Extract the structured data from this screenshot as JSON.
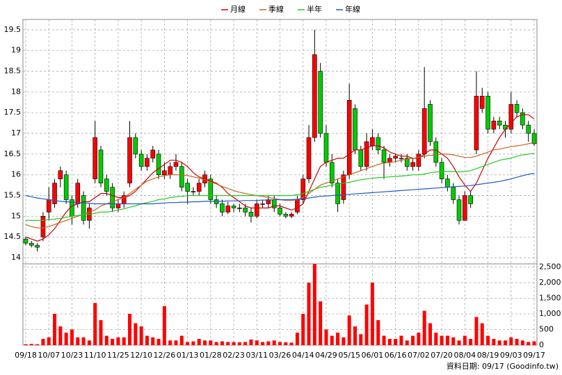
{
  "chart_data": {
    "type": "candlestick",
    "categories": [
      "09/18",
      null,
      null,
      null,
      "10/07",
      null,
      null,
      null,
      "10/23",
      null,
      null,
      null,
      "11/10",
      null,
      null,
      null,
      "11/25",
      null,
      null,
      null,
      "12/10",
      null,
      null,
      null,
      "12/26",
      null,
      null,
      null,
      "01/13",
      null,
      null,
      null,
      "01/28",
      null,
      null,
      null,
      "02/23",
      null,
      null,
      null,
      "03/11",
      null,
      null,
      null,
      "03/26",
      null,
      null,
      null,
      "04/14",
      null,
      null,
      null,
      "04/29",
      null,
      null,
      null,
      "05/15",
      null,
      null,
      null,
      "06/01",
      null,
      null,
      null,
      "06/16",
      null,
      null,
      null,
      "07/02",
      null,
      null,
      null,
      "07/20",
      null,
      null,
      null,
      "08/04",
      null,
      null,
      null,
      "08/19",
      null,
      null,
      null,
      "09/03",
      null,
      null,
      null,
      "09/17"
    ],
    "open": [
      14.45,
      14.35,
      14.3,
      14.5,
      15.1,
      15.3,
      15.9,
      16.0,
      15.4,
      15.3,
      15.5,
      14.9,
      15.9,
      16.6,
      15.9,
      15.7,
      15.2,
      15.3,
      15.8,
      16.9,
      16.5,
      16.2,
      16.4,
      16.5,
      16.0,
      16.0,
      16.2,
      16.2,
      15.8,
      15.6,
      15.6,
      15.8,
      15.9,
      15.4,
      15.3,
      15.1,
      15.25,
      15.2,
      15.2,
      15.1,
      15.0,
      15.3,
      15.3,
      15.4,
      15.2,
      15.05,
      15.0,
      15.1,
      15.4,
      15.9,
      16.9,
      18.5,
      17.0,
      16.3,
      15.8,
      15.4,
      16.0,
      17.6,
      16.6,
      16.2,
      16.7,
      16.9,
      16.6,
      16.3,
      16.4,
      16.4,
      16.4,
      16.2,
      16.2,
      16.5,
      17.7,
      16.8,
      16.3,
      15.9,
      15.7,
      15.4,
      14.9,
      15.5,
      16.6,
      17.6,
      17.9,
      17.1,
      17.3,
      17.2,
      17.1,
      17.7,
      17.5,
      17.2,
      17.0
    ],
    "high": [
      14.5,
      14.4,
      14.35,
      15.1,
      15.7,
      15.9,
      16.2,
      16.1,
      15.5,
      15.9,
      15.6,
      15.3,
      17.3,
      16.7,
      16.0,
      15.8,
      15.4,
      15.6,
      17.3,
      17.0,
      16.6,
      16.5,
      16.7,
      16.6,
      16.3,
      16.3,
      16.5,
      16.3,
      15.9,
      15.7,
      15.9,
      16.1,
      16.0,
      15.5,
      15.4,
      15.35,
      15.3,
      15.3,
      15.3,
      15.2,
      15.4,
      15.4,
      15.5,
      15.5,
      15.3,
      15.1,
      15.1,
      15.5,
      16.0,
      17.2,
      19.5,
      18.7,
      17.2,
      16.5,
      15.9,
      16.1,
      18.2,
      17.7,
      16.7,
      17.0,
      17.1,
      17.0,
      16.7,
      16.5,
      16.5,
      16.5,
      16.5,
      16.4,
      16.6,
      18.6,
      17.8,
      16.9,
      16.4,
      16.0,
      15.8,
      15.5,
      15.6,
      15.6,
      18.5,
      18.1,
      18.0,
      17.4,
      17.4,
      17.3,
      18.0,
      17.8,
      17.6,
      17.3,
      17.1
    ],
    "low": [
      14.3,
      14.25,
      14.15,
      14.4,
      14.9,
      15.2,
      15.7,
      15.3,
      14.8,
      15.2,
      14.8,
      14.7,
      15.8,
      15.7,
      15.5,
      15.1,
      15.1,
      15.2,
      15.7,
      16.4,
      16.1,
      16.1,
      16.3,
      15.9,
      15.9,
      15.9,
      16.1,
      15.6,
      15.3,
      15.5,
      15.5,
      15.7,
      15.3,
      15.2,
      15.0,
      15.05,
      15.1,
      15.1,
      15.0,
      14.85,
      14.95,
      15.2,
      15.2,
      15.1,
      15.0,
      14.95,
      14.95,
      15.05,
      15.3,
      15.8,
      16.8,
      16.9,
      16.2,
      15.7,
      15.1,
      15.3,
      15.9,
      16.5,
      16.1,
      16.1,
      16.6,
      16.5,
      15.9,
      16.2,
      16.3,
      16.3,
      16.1,
      16.1,
      16.1,
      16.4,
      16.7,
      16.2,
      15.8,
      15.6,
      15.3,
      14.8,
      14.9,
      15.2,
      16.5,
      17.5,
      17.0,
      17.0,
      17.1,
      16.9,
      17.0,
      17.4,
      17.1,
      16.8,
      16.7
    ],
    "close": [
      14.35,
      14.3,
      14.25,
      15.0,
      15.4,
      15.8,
      16.1,
      15.4,
      15.0,
      15.8,
      14.9,
      15.2,
      16.9,
      15.8,
      15.6,
      15.2,
      15.3,
      15.5,
      16.9,
      16.5,
      16.2,
      16.4,
      16.6,
      16.0,
      16.1,
      16.2,
      16.3,
      15.7,
      15.6,
      15.6,
      15.8,
      16.0,
      15.4,
      15.3,
      15.1,
      15.25,
      15.2,
      15.2,
      15.1,
      15.0,
      15.3,
      15.3,
      15.4,
      15.2,
      15.05,
      15.0,
      15.05,
      15.4,
      15.9,
      16.9,
      18.9,
      17.0,
      16.3,
      15.8,
      15.3,
      16.0,
      17.8,
      16.6,
      16.2,
      16.8,
      16.9,
      16.6,
      16.3,
      16.4,
      16.45,
      16.4,
      16.2,
      16.3,
      16.5,
      17.6,
      16.8,
      16.3,
      15.9,
      15.7,
      15.4,
      14.9,
      15.5,
      15.3,
      17.9,
      17.9,
      17.1,
      17.3,
      17.2,
      17.1,
      17.7,
      17.5,
      17.2,
      17.0,
      16.75
    ],
    "up_color": "#ff0000",
    "down_color": "#00cc00",
    "series": [
      {
        "name": "月線",
        "color": "#cc0000",
        "values": [
          14.5,
          14.45,
          14.4,
          14.45,
          14.55,
          14.7,
          14.9,
          15.1,
          15.25,
          15.3,
          15.35,
          15.35,
          15.45,
          15.55,
          15.55,
          15.5,
          15.45,
          15.45,
          15.5,
          15.6,
          15.75,
          15.9,
          16.05,
          16.15,
          16.25,
          16.35,
          16.35,
          16.3,
          16.2,
          16.05,
          15.95,
          15.9,
          15.85,
          15.8,
          15.7,
          15.55,
          15.45,
          15.35,
          15.25,
          15.2,
          15.2,
          15.2,
          15.2,
          15.25,
          15.25,
          15.2,
          15.15,
          15.2,
          15.3,
          15.6,
          15.9,
          16.2,
          16.3,
          16.35,
          16.4,
          16.4,
          16.5,
          16.6,
          16.6,
          16.65,
          16.7,
          16.7,
          16.65,
          16.55,
          16.5,
          16.45,
          16.45,
          16.4,
          16.4,
          16.5,
          16.6,
          16.6,
          16.5,
          16.4,
          16.2,
          15.95,
          15.75,
          15.6,
          15.8,
          16.1,
          16.4,
          16.65,
          16.9,
          17.1,
          17.25,
          17.4,
          17.45,
          17.45,
          17.35
        ]
      },
      {
        "name": "季線",
        "color": "#c8641e",
        "values": [
          14.8,
          14.75,
          14.72,
          14.72,
          14.75,
          14.8,
          14.85,
          14.9,
          14.95,
          15.0,
          15.05,
          15.1,
          15.15,
          15.25,
          15.3,
          15.35,
          15.4,
          15.45,
          15.55,
          15.65,
          15.75,
          15.85,
          15.9,
          15.95,
          15.98,
          16.0,
          16.0,
          16.0,
          15.98,
          15.95,
          15.92,
          15.88,
          15.83,
          15.78,
          15.72,
          15.67,
          15.62,
          15.58,
          15.55,
          15.52,
          15.5,
          15.48,
          15.45,
          15.43,
          15.4,
          15.38,
          15.38,
          15.4,
          15.45,
          15.55,
          15.65,
          15.75,
          15.8,
          15.85,
          15.9,
          15.95,
          16.0,
          16.05,
          16.1,
          16.15,
          16.2,
          16.25,
          16.28,
          16.3,
          16.32,
          16.35,
          16.38,
          16.4,
          16.42,
          16.45,
          16.47,
          16.48,
          16.5,
          16.5,
          16.48,
          16.45,
          16.42,
          16.42,
          16.45,
          16.5,
          16.55,
          16.6,
          16.62,
          16.65,
          16.68,
          16.7,
          16.72,
          16.75,
          16.78
        ]
      },
      {
        "name": "半年",
        "color": "#22cc22",
        "values": [
          14.9,
          14.9,
          14.9,
          14.9,
          14.92,
          14.93,
          14.95,
          14.97,
          15.0,
          15.02,
          15.04,
          15.05,
          15.07,
          15.1,
          15.1,
          15.12,
          15.15,
          15.18,
          15.22,
          15.25,
          15.3,
          15.33,
          15.36,
          15.4,
          15.42,
          15.45,
          15.47,
          15.48,
          15.5,
          15.5,
          15.5,
          15.5,
          15.5,
          15.5,
          15.5,
          15.5,
          15.5,
          15.5,
          15.5,
          15.5,
          15.5,
          15.5,
          15.5,
          15.5,
          15.5,
          15.5,
          15.5,
          15.52,
          15.55,
          15.6,
          15.65,
          15.7,
          15.72,
          15.75,
          15.77,
          15.8,
          15.82,
          15.85,
          15.88,
          15.9,
          15.92,
          15.93,
          15.94,
          15.95,
          15.96,
          15.97,
          15.98,
          16.0,
          16.0,
          16.02,
          16.05,
          16.07,
          16.08,
          16.08,
          16.08,
          16.07,
          16.08,
          16.1,
          16.15,
          16.2,
          16.25,
          16.3,
          16.35,
          16.38,
          16.4,
          16.45,
          16.48,
          16.5,
          16.52
        ]
      },
      {
        "name": "年線",
        "color": "#1e5ac8",
        "values": [
          15.5,
          15.47,
          15.44,
          15.42,
          15.4,
          15.38,
          15.36,
          15.35,
          15.34,
          15.33,
          15.32,
          15.31,
          15.3,
          15.3,
          15.3,
          15.3,
          15.3,
          15.3,
          15.3,
          15.3,
          15.3,
          15.3,
          15.3,
          15.31,
          15.32,
          15.33,
          15.33,
          15.34,
          15.34,
          15.35,
          15.35,
          15.36,
          15.36,
          15.36,
          15.36,
          15.37,
          15.37,
          15.37,
          15.38,
          15.38,
          15.38,
          15.39,
          15.39,
          15.4,
          15.4,
          15.4,
          15.4,
          15.41,
          15.42,
          15.44,
          15.46,
          15.48,
          15.49,
          15.5,
          15.51,
          15.52,
          15.53,
          15.54,
          15.55,
          15.56,
          15.57,
          15.58,
          15.59,
          15.6,
          15.61,
          15.62,
          15.63,
          15.64,
          15.65,
          15.66,
          15.67,
          15.68,
          15.69,
          15.7,
          15.71,
          15.72,
          15.73,
          15.74,
          15.76,
          15.78,
          15.8,
          15.82,
          15.84,
          15.87,
          15.9,
          15.94,
          15.98,
          16.01,
          16.04
        ]
      }
    ],
    "ylim": [
      13.85,
      19.75
    ],
    "yticks": [
      14,
      14.5,
      15,
      15.5,
      16,
      16.5,
      17,
      17.5,
      18,
      18.5,
      19,
      19.5
    ],
    "grid": true,
    "volume": {
      "color": "#ff0000",
      "values": [
        30,
        40,
        30,
        200,
        250,
        1000,
        600,
        400,
        500,
        250,
        250,
        150,
        1350,
        800,
        300,
        200,
        250,
        250,
        1000,
        700,
        600,
        300,
        250,
        200,
        1250,
        150,
        150,
        300,
        100,
        120,
        200,
        150,
        150,
        100,
        120,
        100,
        100,
        90,
        100,
        180,
        150,
        100,
        120,
        150,
        100,
        90,
        80,
        400,
        1000,
        2000,
        2600,
        1400,
        500,
        300,
        400,
        250,
        950,
        600,
        350,
        1300,
        2000,
        800,
        300,
        200,
        200,
        300,
        150,
        300,
        400,
        1100,
        700,
        400,
        300,
        300,
        250,
        150,
        300,
        200,
        900,
        700,
        300,
        200,
        150,
        150,
        250,
        200,
        150,
        100,
        120
      ],
      "ylim": [
        0,
        2600
      ],
      "yticks": [
        0,
        500,
        {
          "value": 1000,
          "label": "1,000"
        },
        {
          "value": 1500,
          "label": "1,500"
        },
        {
          "value": 2000,
          "label": "2,000"
        },
        {
          "value": 2500,
          "label": "2,500"
        }
      ]
    },
    "footnote": "資料日期: 09/17 (Goodinfo.tw)"
  }
}
